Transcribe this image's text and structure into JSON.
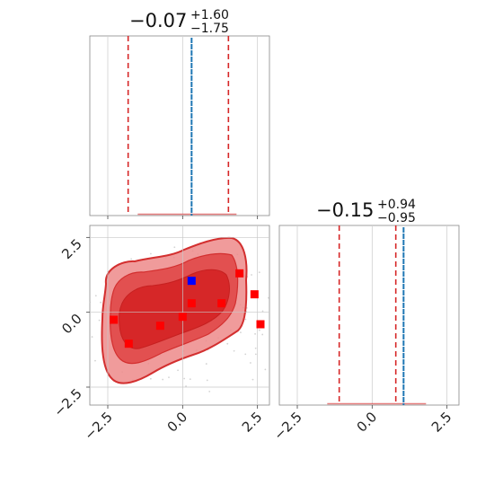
{
  "chart_data": {
    "type": "corner",
    "parameters": [
      {
        "title_value": "−0.07",
        "title_plus": "+1.60",
        "title_minus": "−1.75",
        "median": -0.07,
        "lower": -1.82,
        "upper": 1.53,
        "truth": 0.3,
        "hist_xlim": [
          -3.1,
          2.9
        ]
      },
      {
        "title_value": "−0.15",
        "title_plus": "+0.94",
        "title_minus": "−0.95",
        "median": -0.15,
        "lower": -1.1,
        "upper": 0.79,
        "truth": 1.05,
        "hist_xlim": [
          -3.1,
          2.9
        ]
      }
    ],
    "tick_values": [
      -2.5,
      0.0,
      2.5
    ],
    "tick_labels": [
      "−2.5",
      "0.0",
      "2.5"
    ],
    "scatter_xlim": [
      -3.1,
      2.9
    ],
    "scatter_ylim": [
      -3.1,
      2.9
    ],
    "points": [
      {
        "x": -2.3,
        "y": -0.25
      },
      {
        "x": -1.8,
        "y": -1.05
      },
      {
        "x": -0.75,
        "y": -0.45
      },
      {
        "x": 0.0,
        "y": -0.15
      },
      {
        "x": 0.3,
        "y": 0.3
      },
      {
        "x": 1.3,
        "y": 0.3
      },
      {
        "x": 1.9,
        "y": 1.3
      },
      {
        "x": 2.4,
        "y": 0.6
      },
      {
        "x": 2.6,
        "y": -0.4
      }
    ],
    "truth_point": {
      "x": 0.3,
      "y": 1.05
    },
    "grid": true,
    "colors": {
      "credible_line": "#d62728",
      "truth_line": "#1f77b4",
      "truth_point": "#0000ff",
      "sample_point": "#ff0000",
      "contour_inner": "#d62728",
      "contour_outer": "#ed8a8a",
      "contour_line": "#d32f2f"
    }
  }
}
